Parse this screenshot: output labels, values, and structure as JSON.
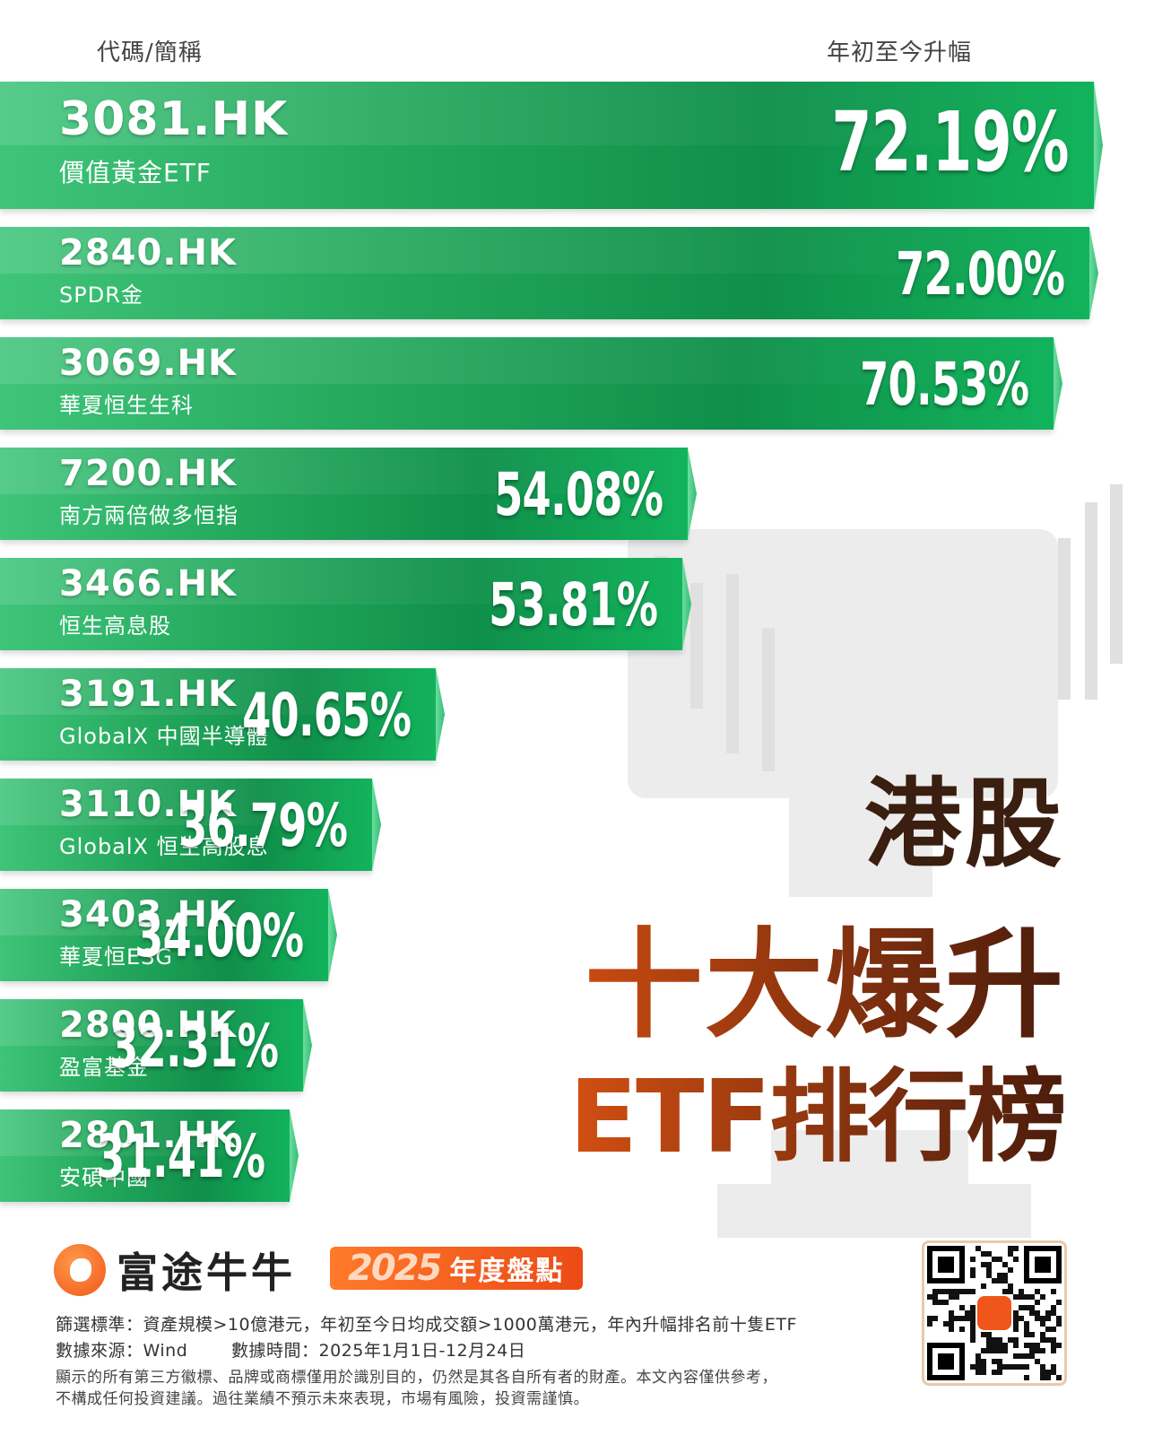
{
  "header": {
    "left_label": "代碼/簡稱",
    "right_label": "年初至今升幅"
  },
  "title": {
    "line1": "港股",
    "line2": "十大爆升",
    "line3": "ETF排行榜"
  },
  "brand": {
    "name": "富途牛牛",
    "badge_year": "2025",
    "badge_text": "年度盤點"
  },
  "footer": {
    "criteria": "篩選標準：資產規模>10億港元，年初至今日均成交額>1000萬港元，年內升幅排名前十隻ETF",
    "source": "數據來源：Wind",
    "period": "數據時間：2025年1月1日-12月24日",
    "disclaimer1": "顯示的所有第三方徽標、品牌或商標僅用於識別目的，仍然是其各自所有者的財產。本文內容僅供參考，",
    "disclaimer2": "不構成任何投資建議。過往業績不預示未來表現，市場有風險，投資需謹慎。"
  },
  "colors": {
    "bar_dark": "#0f8f4a",
    "bar_light": "#3fc47a",
    "title_dark": "#3a1e10",
    "title_orange": "#d24f12",
    "brand_orange": "#f0561a"
  },
  "chart_data": {
    "type": "bar",
    "orientation": "horizontal",
    "title": "港股十大爆升ETF排行榜",
    "xlabel": "年初至今升幅",
    "ylabel": "代碼/簡稱",
    "unit": "%",
    "categories": [
      "3081.HK",
      "2840.HK",
      "3069.HK",
      "7200.HK",
      "3466.HK",
      "3191.HK",
      "3110.HK",
      "3403.HK",
      "2800.HK",
      "2801.HK"
    ],
    "names": [
      "價值黃金ETF",
      "SPDR金",
      "華夏恒生生科",
      "南方兩倍做多恒指",
      "恒生高息股",
      "GlobalX 中國半導體",
      "GlobalX 恒生高股息",
      "華夏恒ESG",
      "盈富基金",
      "安碩中國"
    ],
    "values": [
      72.19,
      72.0,
      70.53,
      54.08,
      53.81,
      40.65,
      36.79,
      34.0,
      32.31,
      31.41
    ],
    "labels": [
      "72.19%",
      "72.00%",
      "70.53%",
      "54.08%",
      "53.81%",
      "40.65%",
      "36.79%",
      "34.00%",
      "32.31%",
      "31.41%"
    ],
    "xlim": [
      0,
      72.19
    ],
    "grid": false,
    "legend": "none"
  }
}
